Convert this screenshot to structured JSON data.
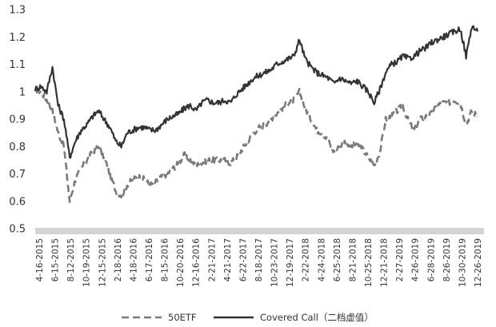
{
  "chart_data": {
    "type": "line",
    "title": "",
    "xlabel": "",
    "ylabel": "",
    "ylim": [
      0.5,
      1.3
    ],
    "yticks": [
      0.5,
      0.6,
      0.7,
      0.8,
      0.9,
      1.0,
      1.1,
      1.2,
      1.3
    ],
    "ytick_labels": [
      "0.5",
      "0.6",
      "0.7",
      "0.8",
      "0.9",
      "1",
      "1.1",
      "1.2",
      "1.3"
    ],
    "x_tick_labels": [
      "4-16-2015",
      "6-15-2015",
      "8-12-2015",
      "10-19-2015",
      "12-15-2015",
      "2-18-2016",
      "4-18-2016",
      "6-17-2016",
      "8-15-2016",
      "10-20-2016",
      "12-16-2016",
      "2-21-2017",
      "4-21-2017",
      "6-22-2017",
      "8-18-2017",
      "10-23-2017",
      "12-19-2017",
      "2-22-2018",
      "4-24-2018",
      "6-25-2018",
      "8-21-2018",
      "10-25-2018",
      "12-21-2018",
      "2-27-2019",
      "4-26-2019",
      "6-28-2019",
      "8-26-2019",
      "10-30-2019",
      "12-26-2019"
    ],
    "grid": false,
    "legend_position": "bottom",
    "series": [
      {
        "name": "50ETF",
        "style": "dashed",
        "color": "#7a7a7a",
        "values": [
          1.01,
          1.0,
          0.97,
          0.93,
          0.85,
          0.8,
          0.6,
          0.68,
          0.72,
          0.75,
          0.78,
          0.8,
          0.76,
          0.7,
          0.64,
          0.62,
          0.66,
          0.68,
          0.69,
          0.68,
          0.66,
          0.67,
          0.69,
          0.7,
          0.72,
          0.74,
          0.77,
          0.75,
          0.73,
          0.74,
          0.75,
          0.75,
          0.75,
          0.75,
          0.74,
          0.76,
          0.79,
          0.82,
          0.85,
          0.87,
          0.88,
          0.9,
          0.92,
          0.94,
          0.96,
          0.97,
          1.0,
          0.94,
          0.9,
          0.86,
          0.85,
          0.82,
          0.78,
          0.8,
          0.82,
          0.8,
          0.81,
          0.79,
          0.76,
          0.73,
          0.78,
          0.9,
          0.91,
          0.93,
          0.95,
          0.89,
          0.86,
          0.9,
          0.91,
          0.92,
          0.95,
          0.96,
          0.96,
          0.97,
          0.96,
          0.88,
          0.93,
          0.91
        ]
      },
      {
        "name": "Covered Call（二档虚值）",
        "style": "solid",
        "color": "#333333",
        "values": [
          1.01,
          1.02,
          1.0,
          1.09,
          0.95,
          0.9,
          0.76,
          0.82,
          0.86,
          0.88,
          0.91,
          0.93,
          0.9,
          0.87,
          0.82,
          0.8,
          0.85,
          0.86,
          0.87,
          0.87,
          0.86,
          0.86,
          0.88,
          0.9,
          0.91,
          0.92,
          0.94,
          0.95,
          0.93,
          0.96,
          0.97,
          0.96,
          0.96,
          0.97,
          0.96,
          0.99,
          1.01,
          1.03,
          1.05,
          1.06,
          1.07,
          1.08,
          1.1,
          1.11,
          1.12,
          1.13,
          1.19,
          1.12,
          1.09,
          1.07,
          1.06,
          1.05,
          1.03,
          1.05,
          1.04,
          1.03,
          1.04,
          1.02,
          1.0,
          0.96,
          1.01,
          1.07,
          1.1,
          1.11,
          1.13,
          1.12,
          1.13,
          1.15,
          1.16,
          1.18,
          1.19,
          1.2,
          1.21,
          1.22,
          1.23,
          1.13,
          1.24,
          1.22
        ]
      }
    ]
  }
}
